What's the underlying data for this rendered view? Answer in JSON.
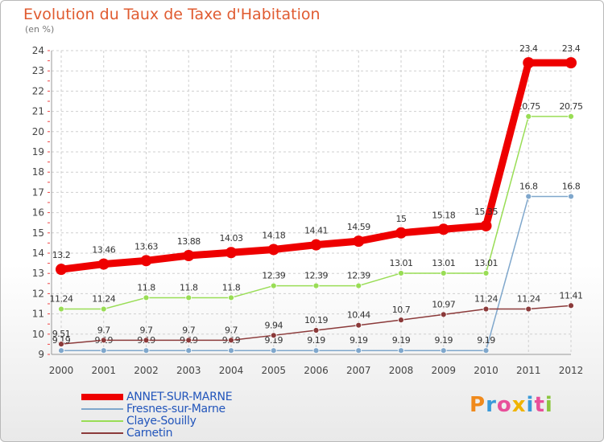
{
  "title": "Evolution du Taux de Taxe d'Habitation",
  "subtitle": "(en %)",
  "brand": {
    "letters": [
      "P",
      "r",
      "o",
      "x",
      "i",
      "t",
      "i"
    ],
    "colors": [
      "#f08a1c",
      "#3a9ad9",
      "#e84f9a",
      "#f0b400",
      "#3a9ad9",
      "#e84f9a",
      "#8cc63f"
    ]
  },
  "chart_data": {
    "type": "line",
    "title": "Evolution du Taux de Taxe d'Habitation",
    "ylabel": "(en %)",
    "x": [
      "2000",
      "2001",
      "2002",
      "2003",
      "2004",
      "2005",
      "2006",
      "2007",
      "2008",
      "2009",
      "2010",
      "2011",
      "2012"
    ],
    "ylim": [
      9,
      24
    ],
    "yticks": [
      "9",
      "10",
      "11",
      "12",
      "13",
      "14",
      "15",
      "16",
      "17",
      "18",
      "19",
      "20",
      "21",
      "22",
      "23",
      "24"
    ],
    "series": [
      {
        "name": "ANNET-SUR-MARNE",
        "color": "#ee0000",
        "width": 9,
        "r": 7,
        "values": [
          13.2,
          13.46,
          13.63,
          13.88,
          14.03,
          14.18,
          14.41,
          14.59,
          15,
          15.18,
          15.35,
          23.4,
          23.4
        ],
        "labels": [
          "13.2",
          "13.46",
          "13.63",
          "13.88",
          "14.03",
          "14.18",
          "14.41",
          "14.59",
          "15",
          "15.18",
          "15.35",
          "23.4",
          "23.4"
        ]
      },
      {
        "name": "Fresnes-sur-Marne",
        "color": "#7fa7cc",
        "width": 1.5,
        "r": 3.5,
        "values": [
          9.19,
          9.19,
          9.19,
          9.19,
          9.19,
          9.19,
          9.19,
          9.19,
          9.19,
          9.19,
          9.19,
          16.8,
          16.8
        ],
        "labels": [
          "9.19",
          "9.19",
          "9.19",
          "9.19",
          "9.19",
          "9.19",
          "9.19",
          "9.19",
          "9.19",
          "9.19",
          "9.19",
          "16.8",
          "16.8"
        ]
      },
      {
        "name": "Claye-Souilly",
        "color": "#99dd55",
        "width": 1.5,
        "r": 3.5,
        "values": [
          11.24,
          11.24,
          11.8,
          11.8,
          11.8,
          12.39,
          12.39,
          12.39,
          13.01,
          13.01,
          13.01,
          20.75,
          20.75
        ],
        "labels": [
          "11.24",
          "11.24",
          "11.8",
          "11.8",
          "11.8",
          "12.39",
          "12.39",
          "12.39",
          "13.01",
          "13.01",
          "13.01",
          "20.75",
          "20.75"
        ]
      },
      {
        "name": "Carnetin",
        "color": "#8b3a3a",
        "width": 1.5,
        "r": 3.5,
        "values": [
          9.51,
          9.7,
          9.7,
          9.7,
          9.7,
          9.94,
          10.19,
          10.44,
          10.7,
          10.97,
          11.24,
          11.24,
          11.41
        ],
        "labels": [
          "9.51",
          "9.7",
          "9.7",
          "9.7",
          "9.7",
          "9.94",
          "10.19",
          "10.44",
          "10.7",
          "10.97",
          "11.24",
          "11.24",
          "11.41"
        ]
      }
    ]
  }
}
